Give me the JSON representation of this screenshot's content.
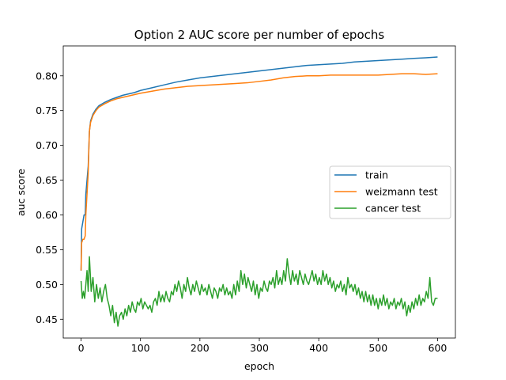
{
  "chart_data": {
    "type": "line",
    "title": "Option 2 AUC score per number of epochs",
    "xlabel": "epoch",
    "ylabel": "auc score",
    "xlim": [
      -30,
      630
    ],
    "ylim": [
      0.423,
      0.843
    ],
    "xticks": [
      0,
      100,
      200,
      300,
      400,
      500,
      600
    ],
    "yticks": [
      0.45,
      0.5,
      0.55,
      0.6,
      0.65,
      0.7,
      0.75,
      0.8
    ],
    "grid": false,
    "legend_position": "center-right",
    "series": [
      {
        "name": "train",
        "color": "#1f77b4",
        "points": [
          [
            0,
            0.52
          ],
          [
            1,
            0.58
          ],
          [
            3,
            0.59
          ],
          [
            5,
            0.6
          ],
          [
            7,
            0.6
          ],
          [
            8,
            0.63
          ],
          [
            10,
            0.65
          ],
          [
            12,
            0.67
          ],
          [
            14,
            0.72
          ],
          [
            16,
            0.735
          ],
          [
            20,
            0.745
          ],
          [
            25,
            0.752
          ],
          [
            30,
            0.757
          ],
          [
            40,
            0.762
          ],
          [
            50,
            0.766
          ],
          [
            60,
            0.769
          ],
          [
            70,
            0.772
          ],
          [
            80,
            0.774
          ],
          [
            90,
            0.776
          ],
          [
            100,
            0.779
          ],
          [
            120,
            0.783
          ],
          [
            140,
            0.787
          ],
          [
            160,
            0.791
          ],
          [
            180,
            0.794
          ],
          [
            200,
            0.797
          ],
          [
            220,
            0.799
          ],
          [
            240,
            0.801
          ],
          [
            260,
            0.803
          ],
          [
            280,
            0.805
          ],
          [
            300,
            0.807
          ],
          [
            320,
            0.809
          ],
          [
            340,
            0.811
          ],
          [
            360,
            0.813
          ],
          [
            380,
            0.815
          ],
          [
            400,
            0.816
          ],
          [
            420,
            0.817
          ],
          [
            440,
            0.818
          ],
          [
            460,
            0.82
          ],
          [
            480,
            0.821
          ],
          [
            500,
            0.822
          ],
          [
            520,
            0.823
          ],
          [
            540,
            0.824
          ],
          [
            560,
            0.825
          ],
          [
            580,
            0.826
          ],
          [
            600,
            0.827
          ]
        ]
      },
      {
        "name": "weizmann test",
        "color": "#ff7f0e",
        "points": [
          [
            0,
            0.52
          ],
          [
            1,
            0.56
          ],
          [
            3,
            0.565
          ],
          [
            5,
            0.565
          ],
          [
            7,
            0.57
          ],
          [
            8,
            0.6
          ],
          [
            10,
            0.63
          ],
          [
            12,
            0.66
          ],
          [
            14,
            0.72
          ],
          [
            16,
            0.733
          ],
          [
            20,
            0.743
          ],
          [
            25,
            0.75
          ],
          [
            30,
            0.755
          ],
          [
            40,
            0.76
          ],
          [
            50,
            0.764
          ],
          [
            60,
            0.767
          ],
          [
            70,
            0.769
          ],
          [
            80,
            0.771
          ],
          [
            90,
            0.773
          ],
          [
            100,
            0.775
          ],
          [
            120,
            0.778
          ],
          [
            140,
            0.781
          ],
          [
            160,
            0.783
          ],
          [
            180,
            0.785
          ],
          [
            200,
            0.786
          ],
          [
            220,
            0.787
          ],
          [
            240,
            0.788
          ],
          [
            260,
            0.789
          ],
          [
            280,
            0.79
          ],
          [
            300,
            0.792
          ],
          [
            320,
            0.794
          ],
          [
            340,
            0.797
          ],
          [
            360,
            0.799
          ],
          [
            380,
            0.8
          ],
          [
            400,
            0.8
          ],
          [
            420,
            0.801
          ],
          [
            440,
            0.801
          ],
          [
            460,
            0.801
          ],
          [
            480,
            0.801
          ],
          [
            500,
            0.801
          ],
          [
            520,
            0.802
          ],
          [
            540,
            0.803
          ],
          [
            560,
            0.803
          ],
          [
            580,
            0.802
          ],
          [
            600,
            0.803
          ]
        ]
      },
      {
        "name": "cancer test",
        "color": "#2ca02c",
        "points": [
          [
            0,
            0.505
          ],
          [
            2,
            0.48
          ],
          [
            4,
            0.49
          ],
          [
            6,
            0.48
          ],
          [
            8,
            0.5
          ],
          [
            10,
            0.52
          ],
          [
            12,
            0.49
          ],
          [
            14,
            0.54
          ],
          [
            17,
            0.49
          ],
          [
            20,
            0.51
          ],
          [
            23,
            0.475
          ],
          [
            26,
            0.5
          ],
          [
            29,
            0.48
          ],
          [
            32,
            0.495
          ],
          [
            35,
            0.475
          ],
          [
            38,
            0.49
          ],
          [
            41,
            0.5
          ],
          [
            44,
            0.48
          ],
          [
            47,
            0.47
          ],
          [
            50,
            0.455
          ],
          [
            53,
            0.47
          ],
          [
            56,
            0.445
          ],
          [
            59,
            0.46
          ],
          [
            62,
            0.44
          ],
          [
            65,
            0.455
          ],
          [
            68,
            0.46
          ],
          [
            71,
            0.45
          ],
          [
            74,
            0.465
          ],
          [
            77,
            0.455
          ],
          [
            80,
            0.47
          ],
          [
            83,
            0.46
          ],
          [
            86,
            0.475
          ],
          [
            89,
            0.465
          ],
          [
            92,
            0.46
          ],
          [
            95,
            0.475
          ],
          [
            98,
            0.47
          ],
          [
            101,
            0.48
          ],
          [
            104,
            0.465
          ],
          [
            107,
            0.475
          ],
          [
            110,
            0.47
          ],
          [
            113,
            0.465
          ],
          [
            116,
            0.47
          ],
          [
            119,
            0.46
          ],
          [
            122,
            0.475
          ],
          [
            125,
            0.48
          ],
          [
            128,
            0.47
          ],
          [
            131,
            0.49
          ],
          [
            134,
            0.475
          ],
          [
            137,
            0.485
          ],
          [
            140,
            0.475
          ],
          [
            143,
            0.49
          ],
          [
            146,
            0.48
          ],
          [
            149,
            0.475
          ],
          [
            152,
            0.49
          ],
          [
            155,
            0.485
          ],
          [
            158,
            0.5
          ],
          [
            161,
            0.49
          ],
          [
            164,
            0.505
          ],
          [
            167,
            0.495
          ],
          [
            170,
            0.48
          ],
          [
            173,
            0.5
          ],
          [
            176,
            0.49
          ],
          [
            179,
            0.51
          ],
          [
            182,
            0.495
          ],
          [
            185,
            0.485
          ],
          [
            188,
            0.5
          ],
          [
            191,
            0.49
          ],
          [
            194,
            0.505
          ],
          [
            197,
            0.495
          ],
          [
            200,
            0.485
          ],
          [
            203,
            0.5
          ],
          [
            206,
            0.49
          ],
          [
            209,
            0.495
          ],
          [
            212,
            0.485
          ],
          [
            215,
            0.5
          ],
          [
            218,
            0.49
          ],
          [
            221,
            0.48
          ],
          [
            224,
            0.495
          ],
          [
            227,
            0.49
          ],
          [
            230,
            0.48
          ],
          [
            233,
            0.495
          ],
          [
            236,
            0.49
          ],
          [
            239,
            0.5
          ],
          [
            242,
            0.485
          ],
          [
            245,
            0.495
          ],
          [
            248,
            0.485
          ],
          [
            251,
            0.49
          ],
          [
            254,
            0.48
          ],
          [
            257,
            0.5
          ],
          [
            260,
            0.485
          ],
          [
            263,
            0.505
          ],
          [
            266,
            0.49
          ],
          [
            269,
            0.52
          ],
          [
            272,
            0.5
          ],
          [
            275,
            0.515
          ],
          [
            278,
            0.495
          ],
          [
            281,
            0.51
          ],
          [
            284,
            0.5
          ],
          [
            287,
            0.49
          ],
          [
            290,
            0.505
          ],
          [
            293,
            0.485
          ],
          [
            296,
            0.5
          ],
          [
            299,
            0.48
          ],
          [
            302,
            0.495
          ],
          [
            305,
            0.49
          ],
          [
            308,
            0.505
          ],
          [
            311,
            0.495
          ],
          [
            314,
            0.49
          ],
          [
            317,
            0.505
          ],
          [
            320,
            0.5
          ],
          [
            323,
            0.51
          ],
          [
            326,
            0.495
          ],
          [
            329,
            0.52
          ],
          [
            332,
            0.5
          ],
          [
            335,
            0.51
          ],
          [
            338,
            0.5
          ],
          [
            341,
            0.52
          ],
          [
            344,
            0.505
          ],
          [
            347,
            0.537
          ],
          [
            350,
            0.515
          ],
          [
            353,
            0.5
          ],
          [
            356,
            0.52
          ],
          [
            359,
            0.505
          ],
          [
            362,
            0.515
          ],
          [
            365,
            0.5
          ],
          [
            368,
            0.52
          ],
          [
            371,
            0.51
          ],
          [
            374,
            0.5
          ],
          [
            377,
            0.515
          ],
          [
            380,
            0.505
          ],
          [
            383,
            0.5
          ],
          [
            386,
            0.51
          ],
          [
            389,
            0.52
          ],
          [
            392,
            0.505
          ],
          [
            395,
            0.515
          ],
          [
            398,
            0.5
          ],
          [
            401,
            0.51
          ],
          [
            404,
            0.5
          ],
          [
            407,
            0.52
          ],
          [
            410,
            0.505
          ],
          [
            413,
            0.515
          ],
          [
            416,
            0.5
          ],
          [
            419,
            0.51
          ],
          [
            422,
            0.495
          ],
          [
            425,
            0.505
          ],
          [
            428,
            0.49
          ],
          [
            431,
            0.5
          ],
          [
            434,
            0.495
          ],
          [
            437,
            0.505
          ],
          [
            440,
            0.49
          ],
          [
            443,
            0.5
          ],
          [
            446,
            0.485
          ],
          [
            449,
            0.51
          ],
          [
            452,
            0.495
          ],
          [
            455,
            0.5
          ],
          [
            458,
            0.49
          ],
          [
            461,
            0.5
          ],
          [
            464,
            0.485
          ],
          [
            467,
            0.495
          ],
          [
            470,
            0.48
          ],
          [
            473,
            0.49
          ],
          [
            476,
            0.475
          ],
          [
            479,
            0.49
          ],
          [
            482,
            0.475
          ],
          [
            485,
            0.485
          ],
          [
            488,
            0.47
          ],
          [
            491,
            0.485
          ],
          [
            494,
            0.47
          ],
          [
            497,
            0.48
          ],
          [
            500,
            0.465
          ],
          [
            503,
            0.48
          ],
          [
            506,
            0.47
          ],
          [
            509,
            0.485
          ],
          [
            512,
            0.47
          ],
          [
            515,
            0.48
          ],
          [
            518,
            0.465
          ],
          [
            521,
            0.475
          ],
          [
            524,
            0.47
          ],
          [
            527,
            0.48
          ],
          [
            530,
            0.465
          ],
          [
            533,
            0.475
          ],
          [
            536,
            0.47
          ],
          [
            539,
            0.48
          ],
          [
            542,
            0.465
          ],
          [
            545,
            0.475
          ],
          [
            548,
            0.455
          ],
          [
            551,
            0.47
          ],
          [
            554,
            0.46
          ],
          [
            557,
            0.475
          ],
          [
            560,
            0.465
          ],
          [
            563,
            0.48
          ],
          [
            566,
            0.47
          ],
          [
            569,
            0.485
          ],
          [
            572,
            0.47
          ],
          [
            575,
            0.48
          ],
          [
            578,
            0.475
          ],
          [
            581,
            0.49
          ],
          [
            584,
            0.48
          ],
          [
            587,
            0.51
          ],
          [
            590,
            0.475
          ],
          [
            593,
            0.47
          ],
          [
            596,
            0.48
          ],
          [
            600,
            0.48
          ]
        ]
      }
    ]
  }
}
